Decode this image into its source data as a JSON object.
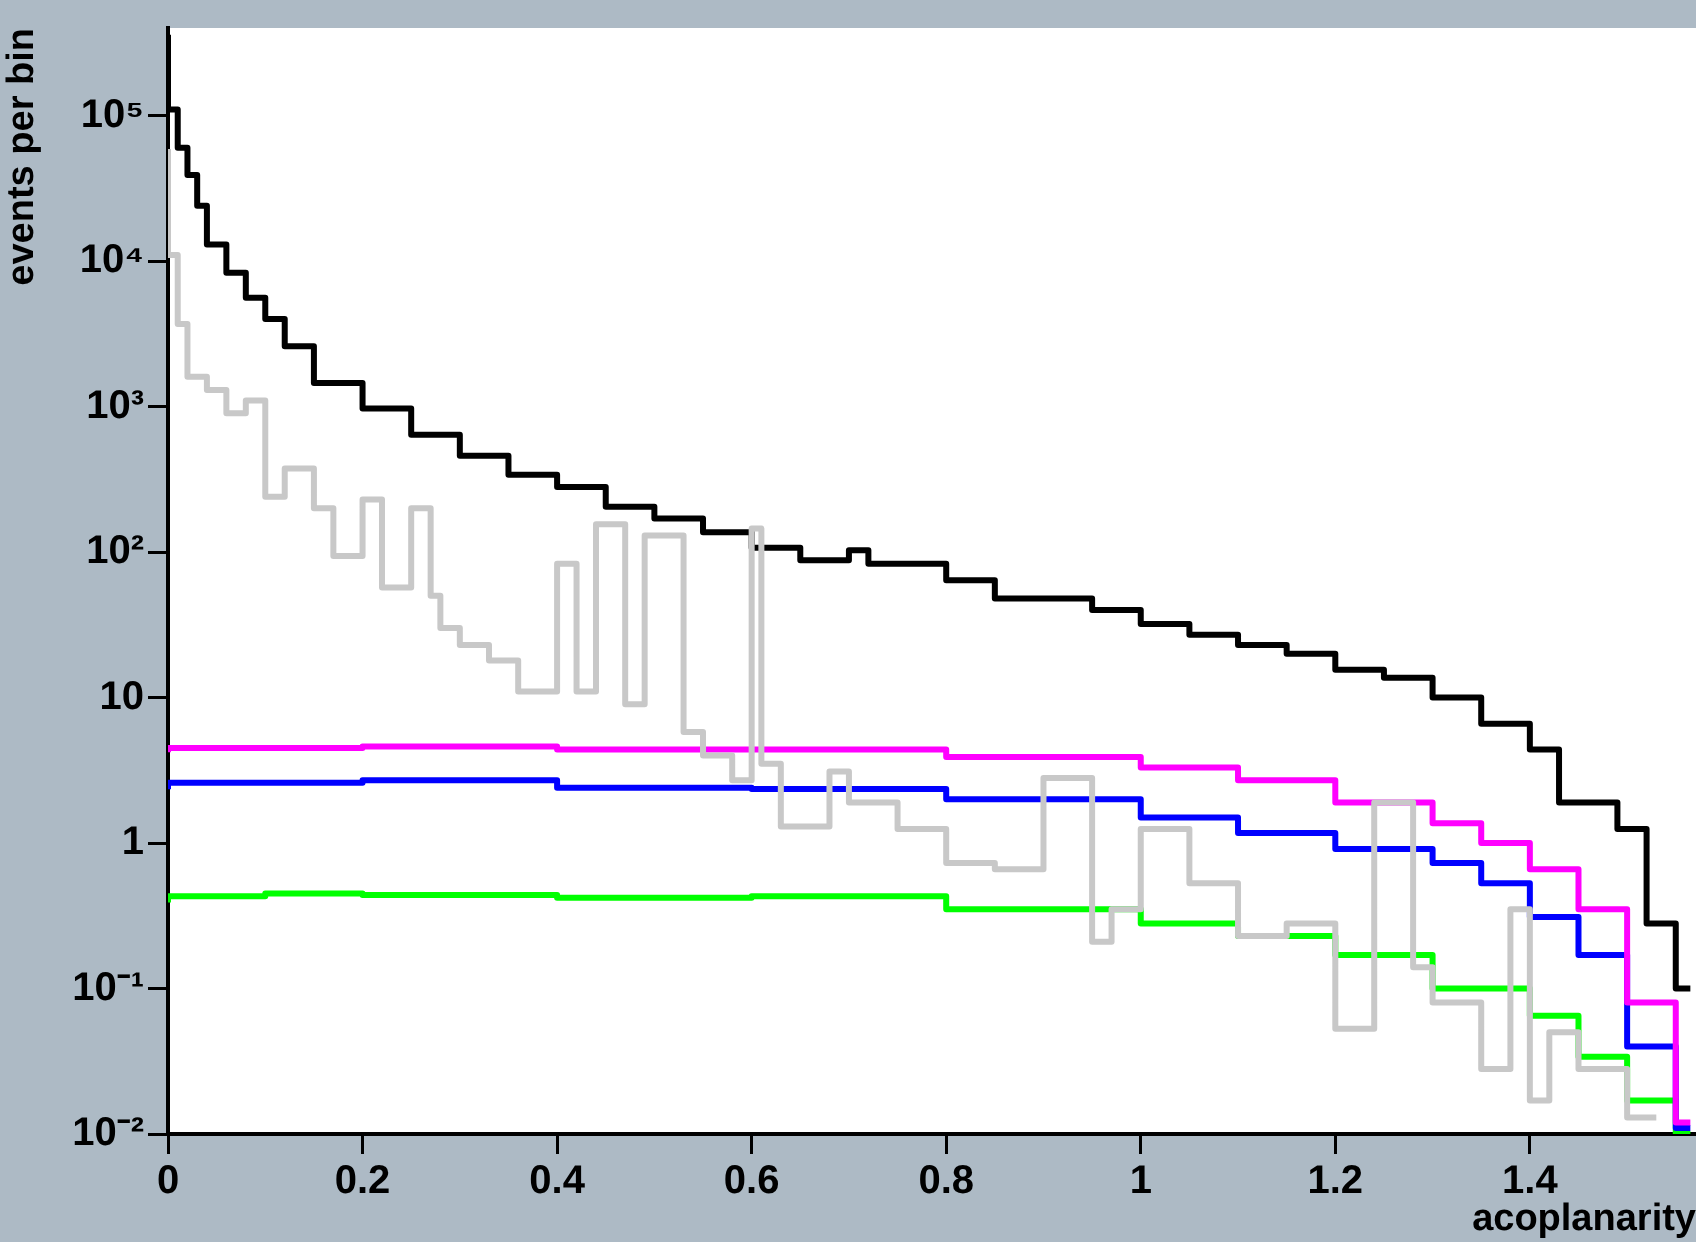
{
  "chart_data": {
    "type": "step",
    "xlabel": "acoplanarity",
    "ylabel": "events per bin",
    "log": "y",
    "grid": false,
    "legend": false,
    "xlim": [
      0,
      1.5708
    ],
    "xticks": [
      0,
      0.2,
      0.4,
      0.6,
      0.8,
      1,
      1.2,
      1.4
    ],
    "ylim": [
      0.01,
      400000
    ],
    "yticks": [
      {
        "value": 0.01,
        "label": "10⁻²"
      },
      {
        "value": 0.1,
        "label": "10⁻¹"
      },
      1,
      10,
      {
        "value": 100,
        "label": "10²"
      },
      {
        "value": 1000,
        "label": "10³"
      },
      {
        "value": 10000,
        "label": "10⁴"
      },
      {
        "value": 100000,
        "label": "10⁵"
      }
    ],
    "series": [
      {
        "color": "#c8c8c8",
        "x": [
          0,
          0.01,
          0.02,
          0.04,
          0.06,
          0.08,
          0.1,
          0.12,
          0.15,
          0.17,
          0.2,
          0.22,
          0.25,
          0.27,
          0.28,
          0.3,
          0.33,
          0.36,
          0.4,
          0.42,
          0.44,
          0.47,
          0.49,
          0.53,
          0.55,
          0.58,
          0.6,
          0.61,
          0.63,
          0.68,
          0.7,
          0.75,
          0.8,
          0.85,
          0.9,
          0.95,
          0.97,
          1,
          1.05,
          1.1,
          1.15,
          1.2,
          1.24,
          1.28,
          1.3,
          1.35,
          1.38,
          1.4,
          1.42,
          1.45,
          1.5,
          1.53
        ],
        "values": [
          59000,
          11000,
          3700,
          1600,
          1300,
          900,
          1100,
          240,
          375,
          200,
          94,
          230,
          57,
          200,
          50,
          30,
          23,
          18,
          11,
          83,
          11,
          155,
          9,
          130,
          5.8,
          4,
          2.7,
          145,
          3.5,
          1.3,
          3.1,
          1.9,
          1.25,
          0.73,
          0.66,
          2.8,
          0.21,
          0.35,
          1.25,
          0.53,
          0.23,
          0.28,
          0.053,
          1.9,
          0.14,
          0.08,
          0.028,
          0.35,
          0.017,
          0.05,
          0.028,
          0.013
        ]
      },
      {
        "color": "#000000",
        "x": [
          0,
          0.01,
          0.02,
          0.03,
          0.04,
          0.06,
          0.08,
          0.1,
          0.12,
          0.15,
          0.2,
          0.25,
          0.3,
          0.35,
          0.4,
          0.45,
          0.5,
          0.55,
          0.6,
          0.65,
          0.7,
          0.72,
          0.8,
          0.85,
          0.9,
          0.95,
          1,
          1.05,
          1.1,
          1.15,
          1.2,
          1.25,
          1.3,
          1.35,
          1.4,
          1.43,
          1.46,
          1.49,
          1.52,
          1.55,
          1.565
        ],
        "values": [
          360000,
          110000,
          60000,
          39000,
          24000,
          13000,
          8300,
          5600,
          4000,
          2600,
          1450,
          970,
          640,
          460,
          340,
          280,
          205,
          170,
          137,
          107,
          88,
          103,
          83,
          64,
          48,
          48,
          40,
          32,
          27,
          23,
          20,
          15.5,
          13.7,
          10,
          6.6,
          4.4,
          1.9,
          1.9,
          1.25,
          0.28,
          0.1
        ]
      },
      {
        "color": "#ff00ff",
        "x": [
          0,
          0.2,
          0.4,
          0.6,
          0.8,
          1,
          1.1,
          1.2,
          1.3,
          1.35,
          1.4,
          1.45,
          1.5,
          1.55,
          1.565
        ],
        "values": [
          4.2,
          4.5,
          4.6,
          4.4,
          4.4,
          3.9,
          3.3,
          2.7,
          1.9,
          1.37,
          1,
          0.66,
          0.35,
          0.08,
          0.012
        ]
      },
      {
        "color": "#0000ff",
        "x": [
          0,
          0.2,
          0.4,
          0.6,
          0.8,
          1,
          1.1,
          1.2,
          1.3,
          1.35,
          1.4,
          1.45,
          1.5,
          1.55,
          1.565
        ],
        "values": [
          2.34,
          2.6,
          2.7,
          2.4,
          2.35,
          2,
          1.5,
          1.17,
          0.91,
          0.73,
          0.53,
          0.31,
          0.17,
          0.04,
          0.011
        ]
      },
      {
        "color": "#00ff00",
        "x": [
          0,
          0.1,
          0.2,
          0.4,
          0.6,
          0.8,
          1,
          1.1,
          1.2,
          1.3,
          1.4,
          1.45,
          1.5,
          1.55,
          1.565
        ],
        "values": [
          0.39,
          0.43,
          0.45,
          0.44,
          0.42,
          0.43,
          0.35,
          0.28,
          0.23,
          0.17,
          0.1,
          0.065,
          0.034,
          0.017,
          0.01
        ]
      }
    ]
  }
}
